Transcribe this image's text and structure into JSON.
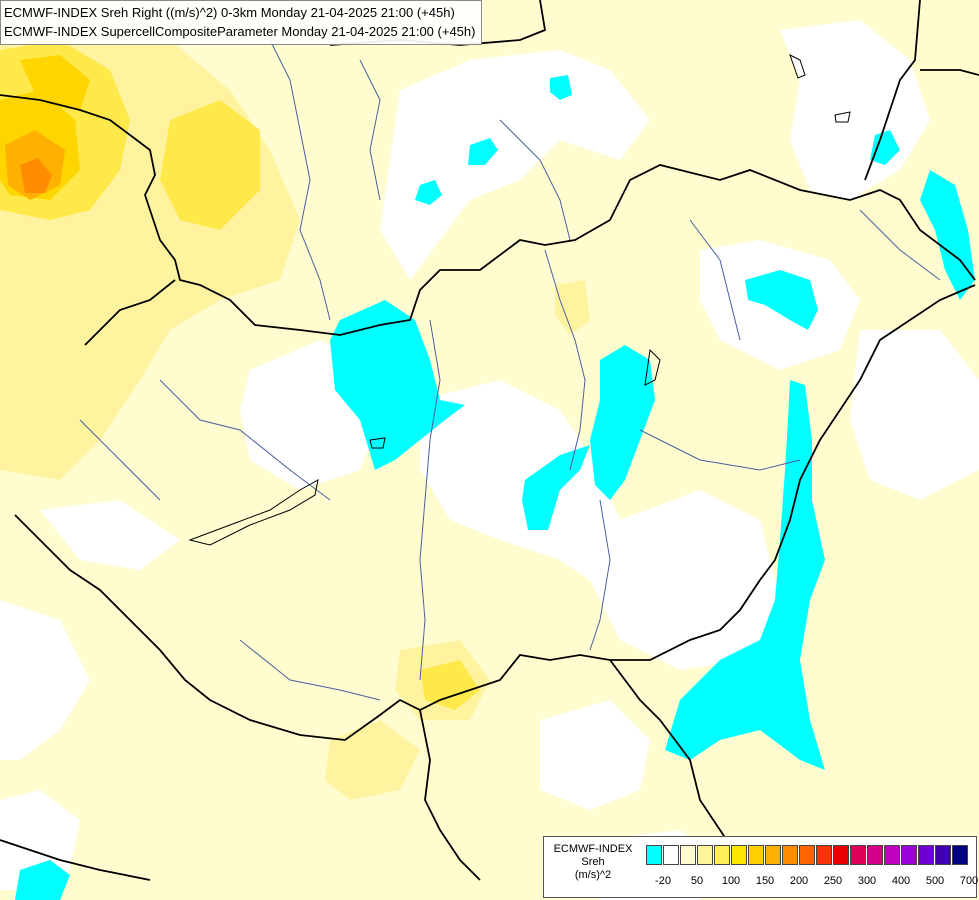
{
  "title": {
    "line1": "ECMWF-INDEX Sreh Right ((m/s)^2) 0-3km Monday 21-04-2025 21:00 (+45h)",
    "line2": "ECMWF-INDEX SupercellCompositeParameter Monday 21-04-2025 21:00 (+45h)"
  },
  "legend": {
    "line1": "ECMWF-INDEX",
    "line2": "Sreh",
    "line3": "(m/s)^2",
    "colors": [
      "#00ffff",
      "#ffffff",
      "#fffacd",
      "#fff59a",
      "#ffee55",
      "#ffe600",
      "#ffd000",
      "#ffb000",
      "#ff8c00",
      "#ff6600",
      "#ff3300",
      "#e60000",
      "#e0005a",
      "#d4008a",
      "#c000c0",
      "#9a00d8",
      "#7000d0",
      "#4000b0",
      "#000080"
    ],
    "ticks": [
      "-20",
      "50",
      "100",
      "150",
      "200",
      "250",
      "300",
      "400",
      "500",
      "700"
    ]
  },
  "map_colors": {
    "background": "#fffdd0",
    "white_zone": "#ffffff",
    "yellow_light": "#fff3a0",
    "yellow_mid": "#ffe94a",
    "yellow_strong": "#ffd500",
    "orange": "#ff8c00",
    "cyan": "#00ffff",
    "border": "#000000",
    "river": "#4a5fa0"
  }
}
